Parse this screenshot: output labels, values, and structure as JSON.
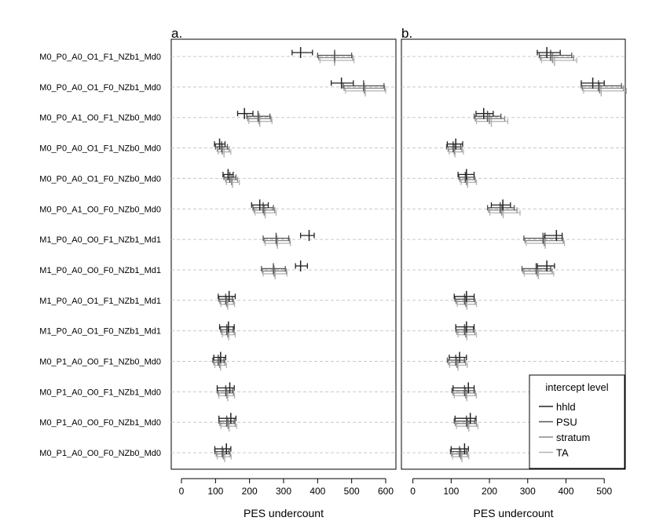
{
  "chart_data": {
    "type": "interval",
    "rows": [
      "M0_P0_A0_O1_F1_NZb1_Md0",
      "M0_P0_A0_O1_F0_NZb1_Md0",
      "M0_P0_A1_O0_F1_NZb0_Md0",
      "M0_P0_A0_O1_F1_NZb0_Md0",
      "M0_P0_A0_O1_F0_NZb0_Md0",
      "M0_P0_A1_O0_F0_NZb0_Md0",
      "M1_P0_A0_O0_F1_NZb1_Md1",
      "M1_P0_A0_O0_F0_NZb1_Md1",
      "M1_P0_A0_O1_F1_NZb1_Md1",
      "M1_P0_A0_O1_F0_NZb1_Md1",
      "M0_P1_A0_O0_F1_NZb0_Md0",
      "M0_P1_A0_O0_F1_NZb1_Md0",
      "M0_P1_A0_O0_F0_NZb1_Md0",
      "M0_P1_A0_O0_F0_NZb0_Md0"
    ],
    "legend": {
      "title": "intercept level",
      "placement": "bottom-right of panel b"
    },
    "series": [
      {
        "name": "hhld",
        "color": "#222222"
      },
      {
        "name": "PSU",
        "color": "#555555"
      },
      {
        "name": "stratum",
        "color": "#888888"
      },
      {
        "name": "TA",
        "color": "#b3b3b3"
      }
    ],
    "panels": [
      {
        "label": "a.",
        "xlabel": "PES undercount",
        "xlim": [
          -30,
          630
        ],
        "xticks": [
          0,
          100,
          200,
          300,
          400,
          500,
          600
        ],
        "intervals": [
          [
            [
              325,
              385,
              350
            ],
            [
              400,
              500,
              450
            ],
            [
              403,
              503,
              450
            ],
            [
              407,
              507,
              450
            ]
          ],
          [
            [
              440,
              505,
              470
            ],
            [
              475,
              595,
              535
            ],
            [
              478,
              597,
              537
            ],
            [
              482,
              600,
              540
            ]
          ],
          [
            [
              165,
              210,
              185
            ],
            [
              192,
              260,
              225
            ],
            [
              195,
              263,
              228
            ],
            [
              198,
              266,
              230
            ]
          ],
          [
            [
              97,
              128,
              112
            ],
            [
              100,
              135,
              118
            ],
            [
              105,
              140,
              120
            ],
            [
              108,
              145,
              125
            ]
          ],
          [
            [
              122,
              152,
              137
            ],
            [
              125,
              160,
              142
            ],
            [
              130,
              165,
              147
            ],
            [
              132,
              170,
              150
            ]
          ],
          [
            [
              206,
              255,
              230
            ],
            [
              210,
              270,
              240
            ],
            [
              213,
              274,
              243
            ],
            [
              216,
              278,
              246
            ]
          ],
          [
            [
              350,
              390,
              375
            ],
            [
              240,
              315,
              278
            ],
            [
              243,
              318,
              280
            ],
            [
              246,
              320,
              282
            ]
          ],
          [
            [
              335,
              370,
              350
            ],
            [
              235,
              305,
              270
            ],
            [
              238,
              308,
              272
            ],
            [
              240,
              310,
              275
            ]
          ],
          [
            [
              108,
              158,
              140
            ],
            [
              110,
              150,
              130
            ],
            [
              113,
              153,
              133
            ],
            [
              116,
              156,
              136
            ]
          ],
          [
            [
              112,
              155,
              138
            ],
            [
              115,
              152,
              133
            ],
            [
              118,
              155,
              136
            ],
            [
              120,
              158,
              139
            ]
          ],
          [
            [
              95,
              130,
              115
            ],
            [
              92,
              125,
              108
            ],
            [
              95,
              128,
              112
            ],
            [
              98,
              132,
              115
            ]
          ],
          [
            [
              105,
              155,
              142
            ],
            [
              105,
              150,
              130
            ],
            [
              108,
              153,
              133
            ],
            [
              110,
              156,
              136
            ]
          ],
          [
            [
              110,
              160,
              145
            ],
            [
              110,
              155,
              133
            ],
            [
              113,
              158,
              137
            ],
            [
              116,
              162,
              140
            ]
          ],
          [
            [
              98,
              145,
              132
            ],
            [
              98,
              140,
              120
            ],
            [
              102,
              143,
              123
            ],
            [
              105,
              146,
              127
            ]
          ]
        ]
      },
      {
        "label": "b.",
        "xlabel": "PES undercount",
        "xlim": [
          -30,
          555
        ],
        "xticks": [
          0,
          100,
          200,
          300,
          400,
          500
        ],
        "intervals": [
          [
            [
              325,
              385,
              350
            ],
            [
              330,
              415,
              360
            ],
            [
              333,
              420,
              365
            ],
            [
              336,
              428,
              370
            ]
          ],
          [
            [
              440,
              500,
              470
            ],
            [
              440,
              545,
              485
            ],
            [
              443,
              550,
              488
            ],
            [
              446,
              558,
              492
            ]
          ],
          [
            [
              165,
              210,
              185
            ],
            [
              160,
              230,
              195
            ],
            [
              163,
              240,
              200
            ],
            [
              166,
              248,
              205
            ]
          ],
          [
            [
              90,
              130,
              112
            ],
            [
              88,
              125,
              105
            ],
            [
              92,
              128,
              108
            ],
            [
              95,
              132,
              110
            ]
          ],
          [
            [
              118,
              160,
              140
            ],
            [
              120,
              160,
              137
            ],
            [
              123,
              163,
              140
            ],
            [
              126,
              166,
              143
            ]
          ],
          [
            [
              205,
              255,
              235
            ],
            [
              195,
              265,
              228
            ],
            [
              198,
              272,
              232
            ],
            [
              201,
              280,
              236
            ]
          ],
          [
            [
              345,
              390,
              375
            ],
            [
              290,
              390,
              340
            ],
            [
              293,
              393,
              343
            ],
            [
              296,
              396,
              346
            ]
          ],
          [
            [
              325,
              370,
              350
            ],
            [
              285,
              360,
              322
            ],
            [
              288,
              364,
              325
            ],
            [
              291,
              368,
              328
            ]
          ],
          [
            [
              108,
              160,
              140
            ],
            [
              110,
              160,
              135
            ],
            [
              113,
              163,
              138
            ],
            [
              116,
              166,
              141
            ]
          ],
          [
            [
              112,
              160,
              140
            ],
            [
              112,
              158,
              135
            ],
            [
              115,
              162,
              138
            ],
            [
              118,
              166,
              141
            ]
          ],
          [
            [
              95,
              140,
              122
            ],
            [
              90,
              135,
              112
            ],
            [
              93,
              138,
              115
            ],
            [
              96,
              142,
              118
            ]
          ],
          [
            [
              105,
              160,
              145
            ],
            [
              102,
              160,
              135
            ],
            [
              105,
              163,
              138
            ],
            [
              108,
              166,
              141
            ]
          ],
          [
            [
              110,
              165,
              150
            ],
            [
              108,
              162,
              140
            ],
            [
              111,
              166,
              143
            ],
            [
              114,
              170,
              146
            ]
          ],
          [
            [
              100,
              145,
              135
            ],
            [
              98,
              140,
              122
            ],
            [
              101,
              143,
              125
            ],
            [
              104,
              146,
              128
            ]
          ]
        ]
      }
    ]
  }
}
